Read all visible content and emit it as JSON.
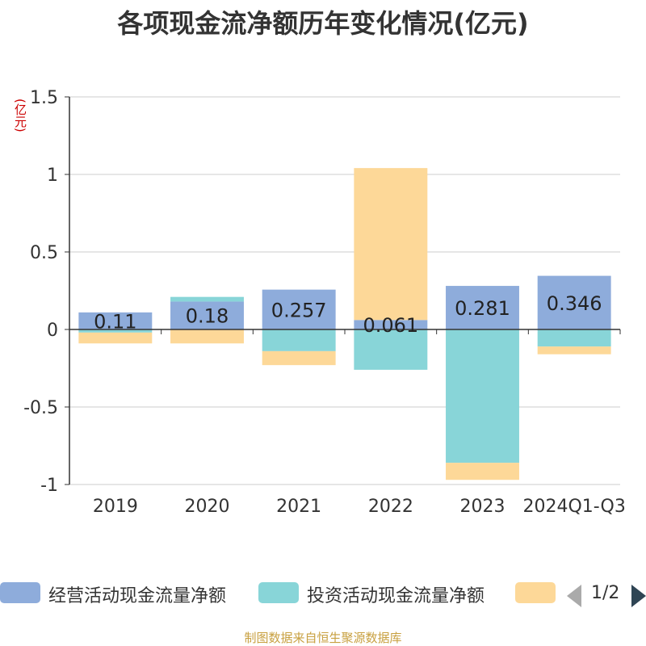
{
  "chart_data": {
    "type": "bar",
    "stacked": true,
    "title": "各项现金流净额历年变化情况(亿元)",
    "unit_label": "(亿元)",
    "categories": [
      "2019",
      "2020",
      "2021",
      "2022",
      "2023",
      "2024Q1-Q3"
    ],
    "ylim": [
      -1,
      1.5
    ],
    "yticks": [
      -1,
      -0.5,
      0,
      0.5,
      1,
      1.5
    ],
    "ytick_labels": [
      "-1",
      "-0.5",
      "0",
      "0.5",
      "1",
      "1.5"
    ],
    "grid": true,
    "legend_position": "bottom",
    "series": [
      {
        "name": "经营活动现金流量净额",
        "color": "#8eacdb",
        "values": [
          0.11,
          0.18,
          0.257,
          0.061,
          0.281,
          0.346
        ],
        "labels": [
          "0.11",
          "0.18",
          "0.257",
          "0.061",
          "0.281",
          "0.346"
        ]
      },
      {
        "name": "投资活动现金流量净额",
        "color": "#88d5d8",
        "values": [
          -0.02,
          0.03,
          -0.14,
          -0.26,
          -0.86,
          -0.11
        ]
      },
      {
        "color": "#fdd898",
        "values": [
          -0.07,
          -0.09,
          -0.09,
          0.98,
          -0.11,
          -0.05
        ]
      }
    ]
  },
  "legend": {
    "page_indicator": "1/2"
  },
  "source_text": "制图数据来自恒生聚源数据库"
}
